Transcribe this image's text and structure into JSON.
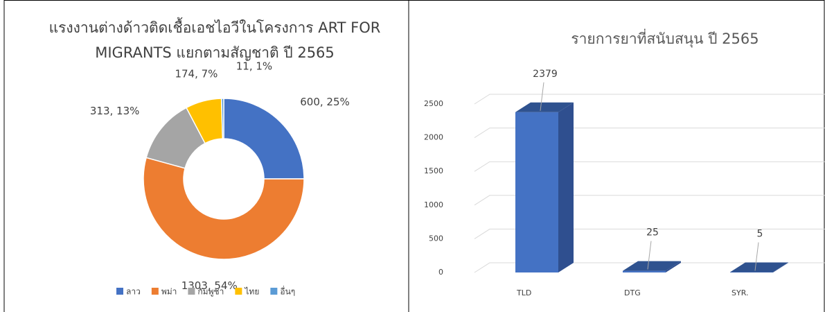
{
  "chart_data": [
    {
      "type": "donut",
      "title": "แรงงานต่างด้าวติดเชื้อเอชไอวีในโครงการ ART  FOR MIGRANTS แยกตามสัญชาติ ปี 2565",
      "categories": [
        "ลาว",
        "พม่า",
        "กัมพูชา",
        "ไทย",
        "อื่นๆ"
      ],
      "values": [
        600,
        1303,
        313,
        174,
        11
      ],
      "value_labels": [
        "600, 25%",
        "1303, 54%",
        "313, 13%",
        "174, 7%",
        "11, 1%"
      ],
      "colors": [
        "#4472c4",
        "#ed7d31",
        "#a5a5a5",
        "#ffc000",
        "#5b9bd5"
      ],
      "legend": "bottom"
    },
    {
      "type": "bar3d",
      "title": "รายการยาที่สนับสนุน ปี 2565",
      "categories": [
        "TLD",
        "DTG",
        "SYR."
      ],
      "values": [
        2379,
        25,
        5
      ],
      "color": "#4472c4",
      "ylim": [
        0,
        2500
      ],
      "yticks": [
        0,
        500,
        1000,
        1500,
        2000,
        2500
      ],
      "grid": true
    }
  ]
}
